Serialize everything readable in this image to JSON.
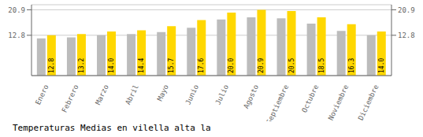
{
  "chart_data": {
    "type": "bar",
    "title": "Temperaturas Medias en vilella alta la",
    "categories": [
      "Enero",
      "Febrero",
      "Marzo",
      "Abril",
      "Mayo",
      "Junio",
      "Julio",
      "Agosto",
      "Septiembre",
      "Octubre",
      "Noviembre",
      "Diciembre"
    ],
    "series": [
      {
        "color": "#BCBCBC",
        "values": [
          11.8,
          12.1,
          12.8,
          13.2,
          13.8,
          15.2,
          17.8,
          18.5,
          18.2,
          16.5,
          14.2,
          12.8
        ]
      },
      {
        "color": "#FFD700",
        "values": [
          12.8,
          13.2,
          14.0,
          14.4,
          15.7,
          17.6,
          20.0,
          20.9,
          20.5,
          18.5,
          16.3,
          14.0
        ],
        "value_labels": [
          "12.8",
          "13.2",
          "14.0",
          "14.4",
          "15.7",
          "17.6",
          "20.0",
          "20.9",
          "20.5",
          "18.5",
          "16.3",
          "14.0"
        ],
        "data_labels": true
      }
    ],
    "ylim": [
      0,
      22.5
    ],
    "yticks": [
      12.8,
      20.9
    ],
    "y2lim": [
      0,
      22.5
    ],
    "y2ticks": [
      12.8,
      20.9
    ],
    "grid": true
  }
}
